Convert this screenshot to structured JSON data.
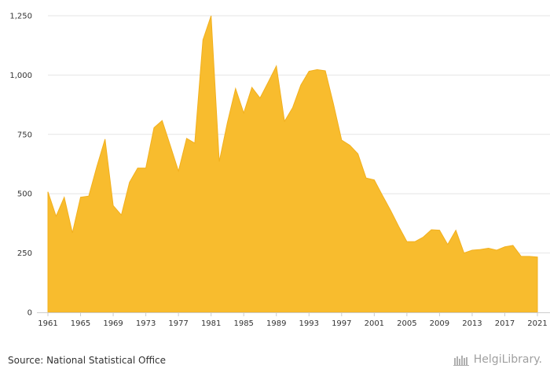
{
  "chart_data": {
    "type": "area",
    "x": [
      1961,
      1962,
      1963,
      1964,
      1965,
      1966,
      1967,
      1968,
      1969,
      1970,
      1971,
      1972,
      1973,
      1974,
      1975,
      1976,
      1977,
      1978,
      1979,
      1980,
      1981,
      1982,
      1983,
      1984,
      1985,
      1986,
      1987,
      1988,
      1989,
      1990,
      1991,
      1992,
      1993,
      1994,
      1995,
      1996,
      1997,
      1998,
      1999,
      2000,
      2001,
      2002,
      2003,
      2004,
      2005,
      2006,
      2007,
      2008,
      2009,
      2010,
      2011,
      2012,
      2013,
      2014,
      2015,
      2016,
      2017,
      2018,
      2019,
      2020,
      2021
    ],
    "series": [
      {
        "values": [
          508,
          405,
          485,
          335,
          485,
          490,
          615,
          730,
          450,
          410,
          548,
          608,
          608,
          778,
          808,
          703,
          595,
          733,
          713,
          1148,
          1250,
          635,
          800,
          943,
          840,
          948,
          903,
          970,
          1038,
          805,
          863,
          958,
          1016,
          1023,
          1018,
          878,
          726,
          704,
          668,
          566,
          558,
          493,
          430,
          362,
          298,
          298,
          317,
          348,
          346,
          286,
          346,
          250,
          262,
          265,
          270,
          262,
          276,
          282,
          236,
          236,
          233
        ],
        "color": "#F8BC2E"
      }
    ],
    "xticks": [
      "1961",
      "1965",
      "1969",
      "1973",
      "1977",
      "1981",
      "1985",
      "1989",
      "1993",
      "1997",
      "2001",
      "2005",
      "2009",
      "2013",
      "2017",
      "2021"
    ],
    "yticks": [
      "0",
      "250",
      "500",
      "750",
      "1,000",
      "1,250"
    ],
    "ylim": [
      0,
      1250
    ],
    "xlim": [
      1961,
      2021
    ],
    "grid": true,
    "grid_color": "#E6E6E6",
    "axis_color": "#CCCCCC",
    "legend": "none"
  },
  "footer": {
    "source": "Source: National Statistical Office",
    "brand": "HelgiLibrary."
  }
}
